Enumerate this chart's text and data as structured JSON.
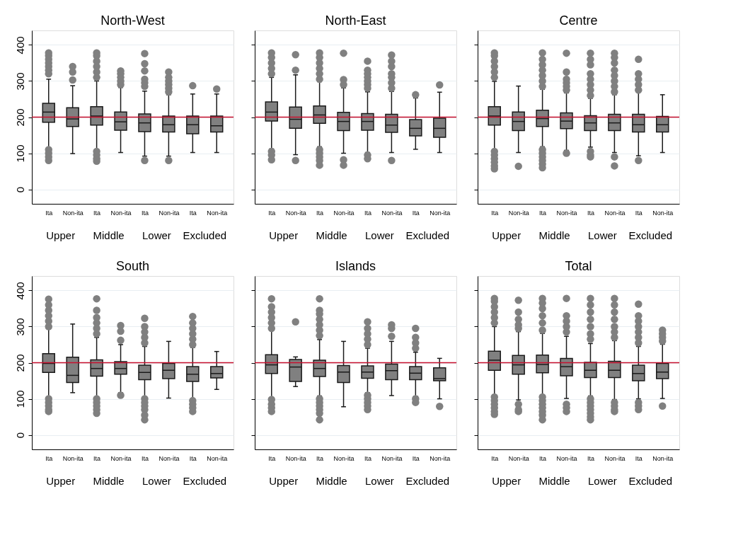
{
  "chart_data": [
    {
      "type": "box",
      "title": "North-West",
      "categories": [
        "Ita",
        "Non-ita",
        "Ita",
        "Non-ita",
        "Ita",
        "Non-ita",
        "Ita",
        "Non-ita"
      ],
      "annotations": [
        "Upper",
        "Middle",
        "Lower",
        "Excluded"
      ],
      "ylim": [
        -40,
        440
      ],
      "yticks": [
        0,
        100,
        200,
        300,
        400
      ],
      "grid": "y",
      "ref_lines": [
        {
          "axis": "y",
          "value": 200,
          "color": "#c8102e"
        }
      ],
      "series": [
        {
          "color": "#808080",
          "boxes": [
            {
              "low": 115,
              "q1": 186,
              "median": 214,
              "q3": 238,
              "high": 305,
              "outliers": [
                320,
                330,
                340,
                350,
                360,
                370,
                378,
                110,
                100,
                90,
                80
              ]
            },
            {
              "low": 99,
              "q1": 174,
              "median": 195,
              "q3": 226,
              "high": 287,
              "outliers": [
                303,
                325,
                340
              ]
            },
            {
              "low": 110,
              "q1": 178,
              "median": 203,
              "q3": 229,
              "high": 300,
              "outliers": [
                310,
                325,
                340,
                355,
                370,
                378,
                105,
                95,
                85,
                78
              ]
            },
            {
              "low": 102,
              "q1": 164,
              "median": 187,
              "q3": 214,
              "high": 282,
              "outliers": [
                290,
                300,
                310,
                320,
                328
              ]
            },
            {
              "low": 92,
              "q1": 160,
              "median": 184,
              "q3": 209,
              "high": 272,
              "outliers": [
                285,
                295,
                305,
                328,
                348,
                376,
                80
              ]
            },
            {
              "low": 92,
              "q1": 159,
              "median": 179,
              "q3": 203,
              "high": 262,
              "outliers": [
                270,
                280,
                290,
                300,
                310,
                325,
                80
              ]
            },
            {
              "low": 102,
              "q1": 154,
              "median": 179,
              "q3": 203,
              "high": 264,
              "outliers": [
                287
              ]
            },
            {
              "low": 102,
              "q1": 159,
              "median": 176,
              "q3": 203,
              "high": 264,
              "outliers": [
                278
              ]
            }
          ]
        }
      ]
    },
    {
      "type": "box",
      "title": "North-East",
      "categories": [
        "Ita",
        "Non-ita",
        "Ita",
        "Non-ita",
        "Ita",
        "Non-ita",
        "Ita",
        "Non-ita"
      ],
      "annotations": [
        "Upper",
        "Middle",
        "Lower",
        "Excluded"
      ],
      "ylim": [
        -40,
        440
      ],
      "yticks": [
        0,
        100,
        200,
        300,
        400
      ],
      "grid": "y",
      "tick_labels": "x",
      "ref_lines": [
        {
          "axis": "y",
          "value": 200,
          "color": "#c8102e"
        }
      ],
      "series": [
        {
          "color": "#808080",
          "boxes": [
            {
              "low": 112,
              "q1": 189,
              "median": 214,
              "q3": 242,
              "high": 310,
              "outliers": [
                320,
                335,
                350,
                365,
                378,
                105,
                95,
                82
              ]
            },
            {
              "low": 96,
              "q1": 169,
              "median": 194,
              "q3": 228,
              "high": 317,
              "outliers": [
                330,
                373,
                80
              ]
            },
            {
              "low": 118,
              "q1": 183,
              "median": 206,
              "q3": 231,
              "high": 298,
              "outliers": [
                305,
                320,
                335,
                350,
                365,
                378,
                110,
                100,
                90,
                80,
                67
              ]
            },
            {
              "low": 100,
              "q1": 163,
              "median": 188,
              "q3": 213,
              "high": 281,
              "outliers": [
                290,
                304,
                377,
                82,
                67
              ]
            },
            {
              "low": 102,
              "q1": 164,
              "median": 188,
              "q3": 210,
              "high": 270,
              "outliers": [
                280,
                290,
                300,
                310,
                320,
                330,
                355,
                95,
                85
              ]
            },
            {
              "low": 102,
              "q1": 158,
              "median": 178,
              "q3": 208,
              "high": 271,
              "outliers": [
                280,
                295,
                310,
                320,
                340,
                355,
                372,
                80
              ]
            },
            {
              "low": 111,
              "q1": 148,
              "median": 169,
              "q3": 193,
              "high": 253,
              "outliers": [
                262
              ]
            },
            {
              "low": 102,
              "q1": 144,
              "median": 169,
              "q3": 197,
              "high": 269,
              "outliers": [
                289
              ]
            }
          ]
        }
      ]
    },
    {
      "type": "box",
      "title": "Centre",
      "categories": [
        "Ita",
        "Non-ita",
        "Ita",
        "Non-ita",
        "Ita",
        "Non-ita",
        "Ita",
        "Non-ita"
      ],
      "annotations": [
        "Upper",
        "Middle",
        "Lower",
        "Excluded"
      ],
      "ylim": [
        -40,
        440
      ],
      "yticks": [
        0,
        100,
        200,
        300,
        400
      ],
      "grid": "y",
      "tick_labels": "x",
      "ref_lines": [
        {
          "axis": "y",
          "value": 200,
          "color": "#c8102e"
        }
      ],
      "series": [
        {
          "color": "#808080",
          "boxes": [
            {
              "low": 110,
              "q1": 178,
              "median": 203,
              "q3": 229,
              "high": 299,
              "outliers": [
                310,
                325,
                340,
                355,
                370,
                378,
                105,
                95,
                85,
                75,
                65,
                57
              ]
            },
            {
              "low": 102,
              "q1": 163,
              "median": 188,
              "q3": 214,
              "high": 286,
              "outliers": [
                64
              ]
            },
            {
              "low": 118,
              "q1": 174,
              "median": 196,
              "q3": 219,
              "high": 277,
              "outliers": [
                285,
                300,
                315,
                330,
                345,
                360,
                378,
                110,
                100,
                90,
                80,
                70,
                60
              ]
            },
            {
              "low": 108,
              "q1": 168,
              "median": 189,
              "q3": 212,
              "high": 267,
              "outliers": [
                275,
                285,
                295,
                305,
                325,
                377,
                100
              ]
            },
            {
              "low": 117,
              "q1": 163,
              "median": 184,
              "q3": 204,
              "high": 252,
              "outliers": [
                260,
                275,
                290,
                305,
                320,
                345,
                360,
                377,
                105,
                95,
                90
              ]
            },
            {
              "low": 102,
              "q1": 163,
              "median": 184,
              "q3": 208,
              "high": 262,
              "outliers": [
                270,
                285,
                300,
                315,
                330,
                350,
                365,
                377,
                90,
                65
              ]
            },
            {
              "low": 93,
              "q1": 159,
              "median": 179,
              "q3": 208,
              "high": 270,
              "outliers": [
                275,
                290,
                305,
                320,
                360,
                80
              ]
            },
            {
              "low": 102,
              "q1": 159,
              "median": 179,
              "q3": 202,
              "high": 262
            }
          ]
        }
      ]
    },
    {
      "type": "box",
      "title": "South",
      "categories": [
        "Ita",
        "Non-ita",
        "Ita",
        "Non-ita",
        "Ita",
        "Non-ita",
        "Ita",
        "Non-ita"
      ],
      "annotations": [
        "Upper",
        "Middle",
        "Lower",
        "Excluded"
      ],
      "ylim": [
        -40,
        440
      ],
      "yticks": [
        0,
        100,
        200,
        300,
        400
      ],
      "grid": "y",
      "ref_lines": [
        {
          "axis": "y",
          "value": 200,
          "color": "#c8102e"
        }
      ],
      "series": [
        {
          "color": "#808080",
          "boxes": [
            {
              "low": 105,
              "q1": 173,
              "median": 198,
              "q3": 225,
              "high": 295,
              "outliers": [
                300,
                315,
                330,
                345,
                360,
                376,
                100,
                90,
                80,
                70,
                65
              ]
            },
            {
              "low": 117,
              "q1": 145,
              "median": 165,
              "q3": 215,
              "high": 307
            },
            {
              "low": 105,
              "q1": 163,
              "median": 184,
              "q3": 208,
              "high": 270,
              "outliers": [
                280,
                295,
                310,
                325,
                345,
                377,
                100,
                90,
                80,
                70,
                60
              ]
            },
            {
              "low": 117,
              "q1": 168,
              "median": 184,
              "q3": 203,
              "high": 250,
              "outliers": [
                262,
                287,
                303,
                110
              ]
            },
            {
              "low": 105,
              "q1": 153,
              "median": 173,
              "q3": 193,
              "high": 245,
              "outliers": [
                255,
                270,
                285,
                300,
                323,
                100,
                90,
                80,
                70,
                55,
                42
              ]
            },
            {
              "low": 102,
              "q1": 156,
              "median": 179,
              "q3": 198,
              "high": 259
            },
            {
              "low": 100,
              "q1": 148,
              "median": 168,
              "q3": 189,
              "high": 242,
              "outliers": [
                250,
                265,
                280,
                295,
                310,
                328,
                95,
                85,
                75,
                65
              ]
            },
            {
              "low": 126,
              "q1": 158,
              "median": 170,
              "q3": 189,
              "high": 231
            }
          ]
        }
      ]
    },
    {
      "type": "box",
      "title": "Islands",
      "categories": [
        "Ita",
        "Non-ita",
        "Ita",
        "Non-ita",
        "Ita",
        "Non-ita",
        "Ita",
        "Non-ita"
      ],
      "annotations": [
        "Upper",
        "Middle",
        "Lower",
        "Excluded"
      ],
      "ylim": [
        -40,
        440
      ],
      "yticks": [
        0,
        100,
        200,
        300,
        400
      ],
      "grid": "y",
      "tick_labels": "x",
      "ref_lines": [
        {
          "axis": "y",
          "value": 200,
          "color": "#c8102e"
        }
      ],
      "series": [
        {
          "color": "#808080",
          "boxes": [
            {
              "low": 103,
              "q1": 170,
              "median": 194,
              "q3": 222,
              "high": 289,
              "outliers": [
                295,
                310,
                325,
                340,
                355,
                377,
                98,
                85,
                75,
                65
              ]
            },
            {
              "low": 134,
              "q1": 148,
              "median": 188,
              "q3": 209,
              "high": 216,
              "outliers": [
                313
              ]
            },
            {
              "low": 108,
              "q1": 162,
              "median": 184,
              "q3": 207,
              "high": 264,
              "outliers": [
                275,
                290,
                305,
                320,
                335,
                345,
                377,
                100,
                90,
                80,
                70,
                60,
                42
              ]
            },
            {
              "low": 78,
              "q1": 145,
              "median": 174,
              "q3": 192,
              "high": 259
            },
            {
              "low": 117,
              "q1": 157,
              "median": 174,
              "q3": 191,
              "high": 240,
              "outliers": [
                250,
                265,
                280,
                295,
                313,
                110,
                100,
                90,
                80,
                70
              ]
            },
            {
              "low": 109,
              "q1": 153,
              "median": 178,
              "q3": 196,
              "high": 259,
              "outliers": [
                273,
                295,
                305
              ]
            },
            {
              "low": 107,
              "q1": 153,
              "median": 171,
              "q3": 189,
              "high": 229,
              "outliers": [
                240,
                255,
                270,
                295,
                100,
                90
              ]
            },
            {
              "low": 100,
              "q1": 150,
              "median": 156,
              "q3": 186,
              "high": 212,
              "outliers": [
                79
              ]
            }
          ]
        }
      ]
    },
    {
      "type": "box",
      "title": "Total",
      "categories": [
        "Ita",
        "Non-ita",
        "Ita",
        "Non-ita",
        "Ita",
        "Non-ita",
        "Ita",
        "Non-ita"
      ],
      "annotations": [
        "Upper",
        "Middle",
        "Lower",
        "Excluded"
      ],
      "ylim": [
        -40,
        440
      ],
      "yticks": [
        0,
        100,
        200,
        300,
        400
      ],
      "grid": "y",
      "tick_labels": "x",
      "ref_lines": [
        {
          "axis": "y",
          "value": 200,
          "color": "#c8102e"
        }
      ],
      "series": [
        {
          "color": "#808080",
          "boxes": [
            {
              "low": 110,
              "q1": 179,
              "median": 207,
              "q3": 232,
              "high": 300,
              "outliers": [
                310,
                325,
                340,
                355,
                370,
                378,
                105,
                95,
                85,
                75,
                65,
                57
              ]
            },
            {
              "low": 97,
              "q1": 168,
              "median": 194,
              "q3": 220,
              "high": 286,
              "outliers": [
                295,
                305,
                320,
                340,
                373,
                85,
                70,
                65
              ]
            },
            {
              "low": 110,
              "q1": 172,
              "median": 195,
              "q3": 221,
              "high": 281,
              "outliers": [
                290,
                310,
                330,
                350,
                365,
                378,
                105,
                95,
                85,
                75,
                65,
                55,
                42
              ]
            },
            {
              "low": 101,
              "q1": 164,
              "median": 189,
              "q3": 212,
              "high": 273,
              "outliers": [
                285,
                300,
                315,
                330,
                378,
                85,
                75,
                65
              ]
            },
            {
              "low": 108,
              "q1": 159,
              "median": 179,
              "q3": 201,
              "high": 253,
              "outliers": [
                265,
                280,
                300,
                320,
                340,
                360,
                378,
                100,
                90,
                80,
                70,
                60,
                50,
                42
              ]
            },
            {
              "low": 98,
              "q1": 159,
              "median": 179,
              "q3": 204,
              "high": 261,
              "outliers": [
                270,
                285,
                300,
                320,
                340,
                360,
                378,
                90,
                80,
                70,
                65
              ]
            },
            {
              "low": 100,
              "q1": 150,
              "median": 170,
              "q3": 193,
              "high": 245,
              "outliers": [
                255,
                270,
                285,
                300,
                315,
                330,
                362,
                90,
                80,
                70
              ]
            },
            {
              "low": 101,
              "q1": 156,
              "median": 174,
              "q3": 198,
              "high": 251,
              "outliers": [
                260,
                270,
                280,
                290,
                80
              ]
            }
          ]
        }
      ]
    }
  ]
}
